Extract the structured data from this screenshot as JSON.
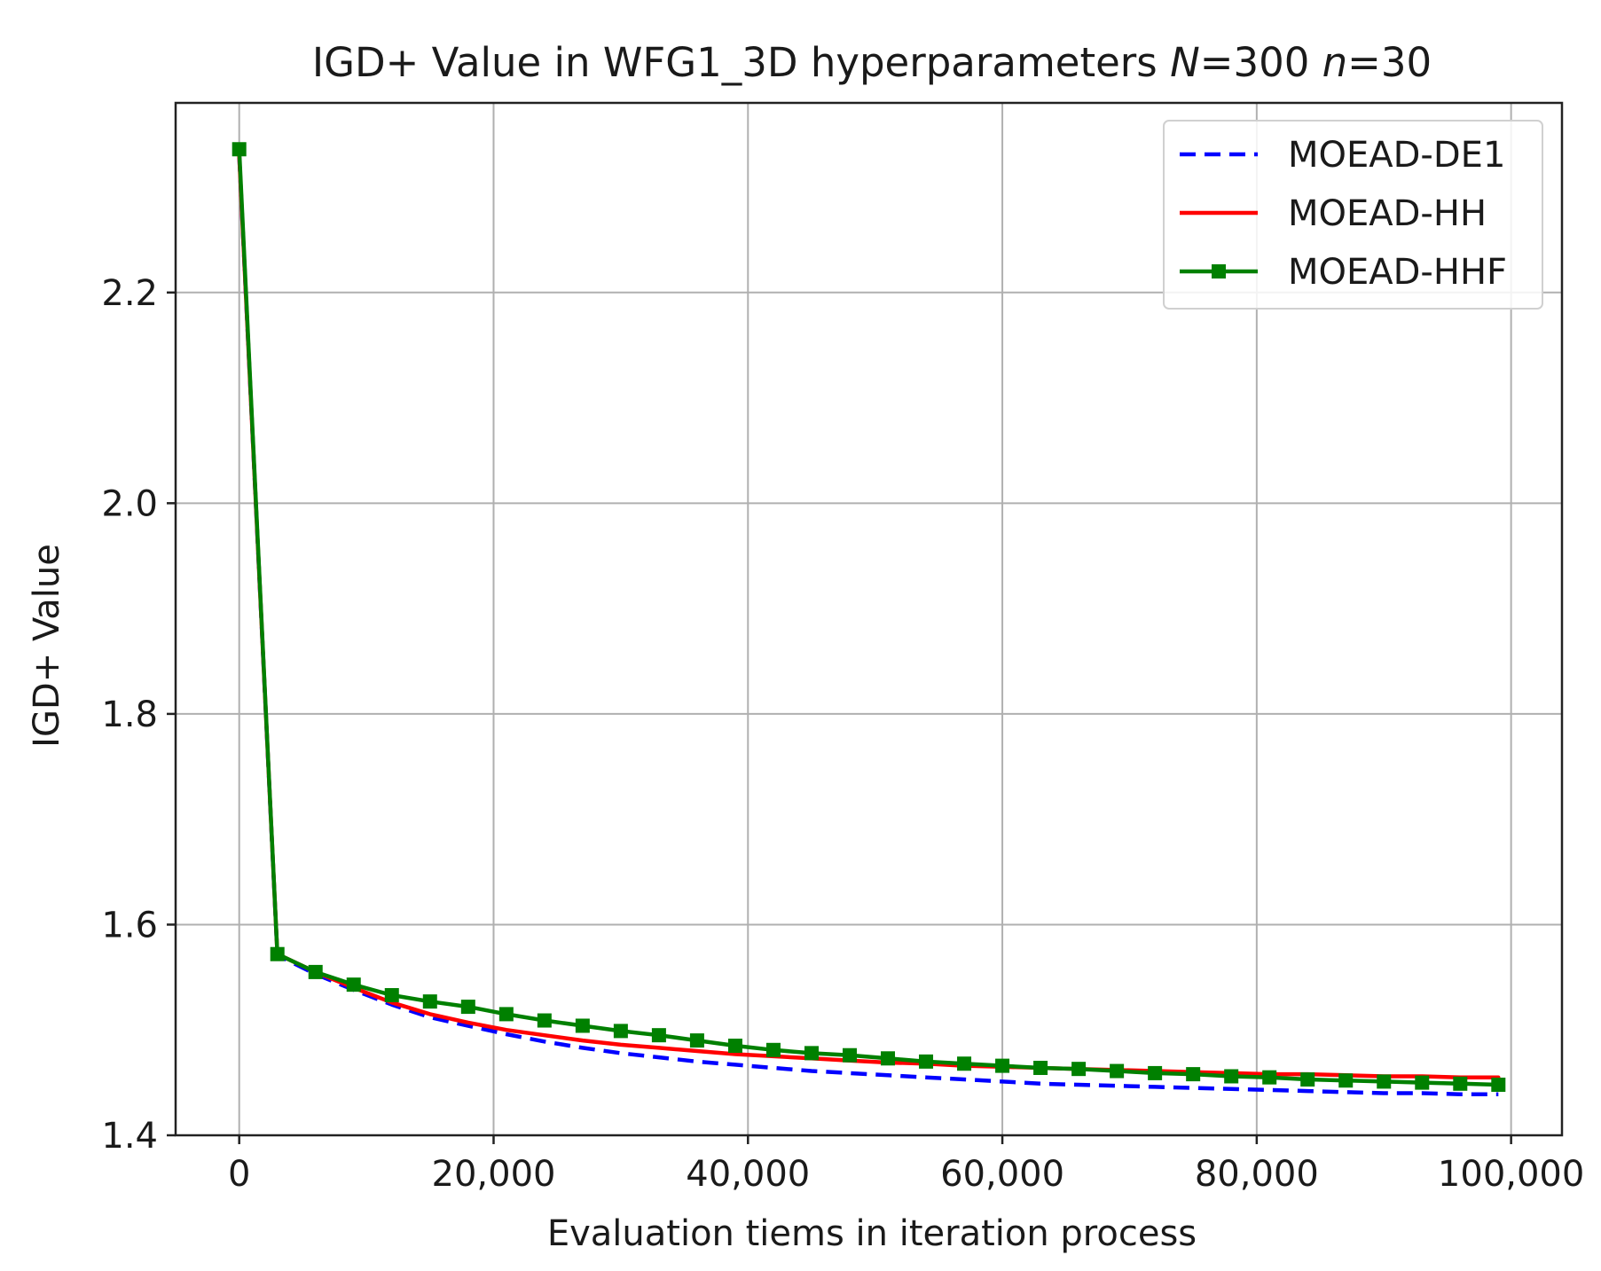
{
  "chart_data": {
    "type": "line",
    "title": {
      "prefix": "IGD+ Value in WFG1_3D hyperparameters ",
      "N_symbol": "N",
      "N_value": "=300 ",
      "n_symbol": "n",
      "n_value": "=30"
    },
    "xlabel": "Evaluation tiems in iteration process",
    "ylabel": "IGD+ Value",
    "xlim": [
      -5000,
      104000
    ],
    "ylim": [
      1.4,
      2.38
    ],
    "x_ticks": [
      0,
      20000,
      40000,
      60000,
      80000,
      100000
    ],
    "x_tick_labels": [
      "0",
      "20,000",
      "40,000",
      "60,000",
      "80,000",
      "100,000"
    ],
    "y_ticks": [
      1.4,
      1.6,
      1.8,
      2.0,
      2.2
    ],
    "y_tick_labels": [
      "1.4",
      "1.6",
      "1.8",
      "2.0",
      "2.2"
    ],
    "grid": true,
    "legend_position": "top-right",
    "series": [
      {
        "name": "MOEAD-DE1",
        "color": "#0000ff",
        "style": "dashed",
        "marker": "none",
        "x": [
          0,
          3000,
          6000,
          9000,
          12000,
          15000,
          18000,
          21000,
          24000,
          27000,
          30000,
          33000,
          36000,
          39000,
          42000,
          45000,
          48000,
          51000,
          54000,
          57000,
          60000,
          63000,
          66000,
          69000,
          72000,
          75000,
          78000,
          81000,
          84000,
          87000,
          90000,
          93000,
          96000,
          99000
        ],
        "y": [
          2.33,
          1.571,
          1.553,
          1.538,
          1.524,
          1.512,
          1.504,
          1.496,
          1.489,
          1.483,
          1.478,
          1.474,
          1.47,
          1.467,
          1.464,
          1.461,
          1.459,
          1.457,
          1.455,
          1.453,
          1.451,
          1.449,
          1.448,
          1.447,
          1.446,
          1.445,
          1.444,
          1.443,
          1.442,
          1.441,
          1.44,
          1.44,
          1.439,
          1.439
        ]
      },
      {
        "name": "MOEAD-HH",
        "color": "#ff0000",
        "style": "solid",
        "marker": "none",
        "x": [
          0,
          3000,
          6000,
          9000,
          12000,
          15000,
          18000,
          21000,
          24000,
          27000,
          30000,
          33000,
          36000,
          39000,
          42000,
          45000,
          48000,
          51000,
          54000,
          57000,
          60000,
          63000,
          66000,
          69000,
          72000,
          75000,
          78000,
          81000,
          84000,
          87000,
          90000,
          93000,
          96000,
          99000
        ],
        "y": [
          2.33,
          1.572,
          1.555,
          1.54,
          1.526,
          1.515,
          1.507,
          1.5,
          1.495,
          1.49,
          1.486,
          1.483,
          1.48,
          1.477,
          1.475,
          1.473,
          1.471,
          1.469,
          1.468,
          1.466,
          1.465,
          1.464,
          1.463,
          1.462,
          1.461,
          1.46,
          1.459,
          1.458,
          1.458,
          1.457,
          1.456,
          1.456,
          1.455,
          1.455
        ]
      },
      {
        "name": "MOEAD-HHF",
        "color": "#008000",
        "style": "solid",
        "marker": "square",
        "x": [
          0,
          3000,
          6000,
          9000,
          12000,
          15000,
          18000,
          21000,
          24000,
          27000,
          30000,
          33000,
          36000,
          39000,
          42000,
          45000,
          48000,
          51000,
          54000,
          57000,
          60000,
          63000,
          66000,
          69000,
          72000,
          75000,
          78000,
          81000,
          84000,
          87000,
          90000,
          93000,
          96000,
          99000
        ],
        "y": [
          2.336,
          1.572,
          1.555,
          1.543,
          1.533,
          1.527,
          1.522,
          1.515,
          1.509,
          1.504,
          1.499,
          1.495,
          1.49,
          1.485,
          1.481,
          1.478,
          1.476,
          1.473,
          1.47,
          1.468,
          1.466,
          1.464,
          1.463,
          1.461,
          1.459,
          1.458,
          1.456,
          1.455,
          1.453,
          1.452,
          1.451,
          1.45,
          1.449,
          1.448
        ]
      }
    ]
  }
}
